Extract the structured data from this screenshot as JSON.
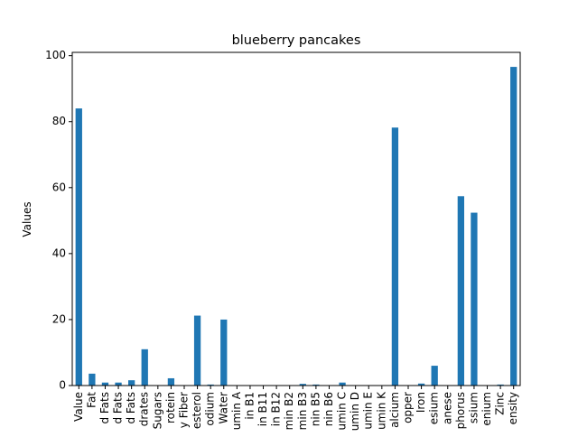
{
  "chart_data": {
    "type": "bar",
    "title": "blueberry pancakes",
    "xlabel": "",
    "ylabel": "Values",
    "ylim": [
      0,
      101
    ],
    "yticks": [
      0,
      20,
      40,
      60,
      80,
      100
    ],
    "grid": false,
    "legend": "none",
    "bar_color": "#1f77b4",
    "categories": [
      "Value",
      "Fat",
      "d Fats",
      "d Fats",
      "d Fats",
      "drates",
      "Sugars",
      "rotein",
      "y Fiber",
      "esterol",
      "odium",
      "Water",
      "umin A",
      "in B1",
      "in B11",
      "in B12",
      "min B2",
      "min B3",
      "nin B5",
      "nin B6",
      "umin C",
      "umin D",
      "umin E",
      "umin K",
      "alcium",
      "opper",
      "Iron",
      "esium",
      "anese",
      "phorus",
      "ssium",
      "enium",
      "Zinc",
      "ensity"
    ],
    "values": [
      84,
      3.6,
      0.9,
      0.9,
      1.6,
      11,
      0,
      2.2,
      0,
      21.2,
      0.3,
      20,
      0,
      0,
      0,
      0,
      0,
      0.5,
      0.3,
      0,
      0.9,
      0,
      0,
      0,
      78.2,
      0,
      0.6,
      6,
      0,
      57.4,
      52.4,
      0,
      0.3,
      96.6
    ]
  }
}
